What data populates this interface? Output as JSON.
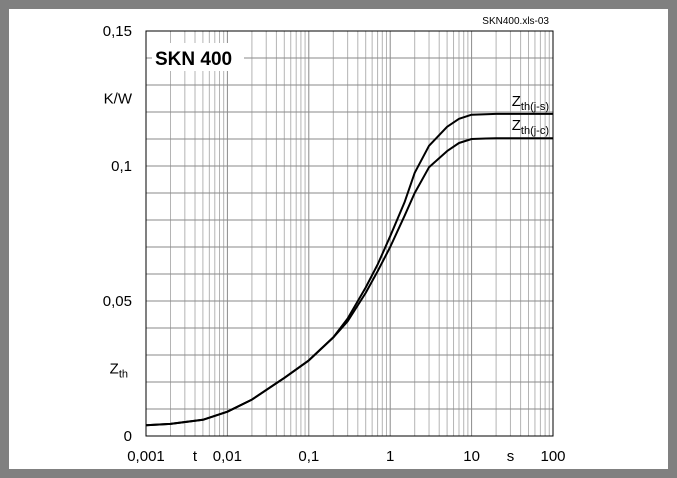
{
  "chart_data": {
    "type": "line",
    "title": "SKN 400",
    "file_label": "SKN400.xls-03",
    "x_scale": "log",
    "xlim": [
      0.001,
      100
    ],
    "ylim": [
      0,
      0.15
    ],
    "x_ticks": [
      "0,001",
      "0,01",
      "0,1",
      "1",
      "10",
      "100"
    ],
    "x_tick_values": [
      0.001,
      0.01,
      0.1,
      1,
      10,
      100
    ],
    "x_unit_label": "s",
    "x_symbol_label": "t",
    "y_ticks": [
      "0",
      "0,05",
      "0,1",
      "0,15"
    ],
    "y_tick_values": [
      0,
      0.05,
      0.1,
      0.15
    ],
    "y_unit_label": "K/W",
    "y_symbol": {
      "main": "Z",
      "sub": "th"
    },
    "grid": true,
    "series": [
      {
        "name": {
          "main": "Z",
          "sub": "th(j-s)"
        },
        "color": "#000000",
        "x": [
          0.001,
          0.002,
          0.005,
          0.01,
          0.02,
          0.05,
          0.1,
          0.2,
          0.3,
          0.5,
          0.7,
          1,
          1.5,
          2,
          3,
          5,
          7,
          10,
          15,
          20,
          30,
          50,
          100
        ],
        "y": [
          0.004,
          0.0045,
          0.006,
          0.009,
          0.0135,
          0.0215,
          0.028,
          0.0365,
          0.0435,
          0.055,
          0.0635,
          0.074,
          0.0865,
          0.0975,
          0.1075,
          0.1145,
          0.1175,
          0.119,
          0.1192,
          0.1193,
          0.1193,
          0.1193,
          0.1193
        ]
      },
      {
        "name": {
          "main": "Z",
          "sub": "th(j-c)"
        },
        "color": "#000000",
        "x": [
          0.001,
          0.002,
          0.005,
          0.01,
          0.02,
          0.05,
          0.1,
          0.2,
          0.3,
          0.5,
          0.7,
          1,
          1.5,
          2,
          3,
          5,
          7,
          10,
          15,
          20,
          30,
          50,
          100
        ],
        "y": [
          0.004,
          0.0045,
          0.006,
          0.009,
          0.0135,
          0.0215,
          0.028,
          0.0365,
          0.0425,
          0.053,
          0.061,
          0.07,
          0.0815,
          0.09,
          0.0995,
          0.1055,
          0.1085,
          0.11,
          0.1102,
          0.1103,
          0.1103,
          0.1103,
          0.1103
        ]
      }
    ]
  }
}
